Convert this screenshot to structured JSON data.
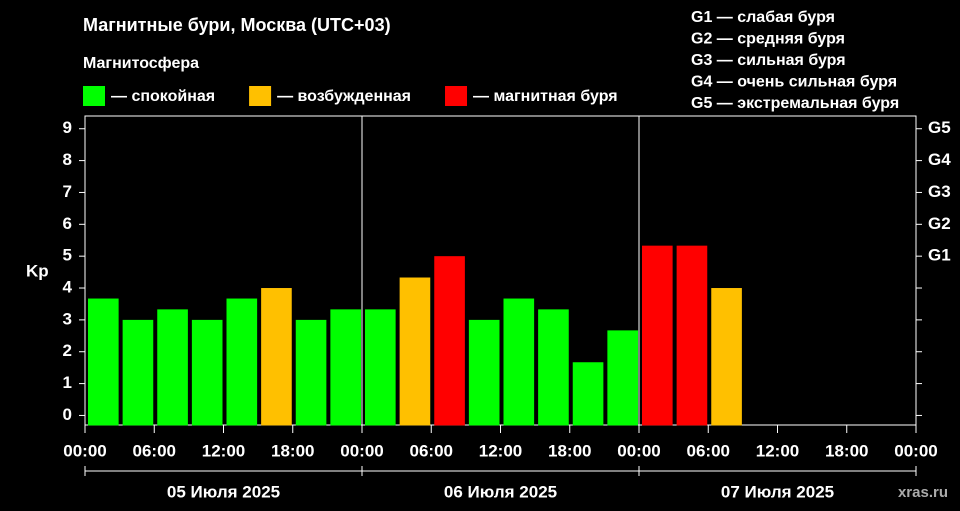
{
  "chart_data": {
    "type": "bar",
    "title": "Магнитные бури, Москва (UTC+03)",
    "subtitle": "Магнитосфера",
    "legend": [
      {
        "label": "— спокойная",
        "color": "#00ff00"
      },
      {
        "label": "— возбужденная",
        "color": "#ffc000"
      },
      {
        "label": "— магнитная буря",
        "color": "#ff0000"
      }
    ],
    "storm_levels": [
      "G1 — слабая буря",
      "G2 — средняя буря",
      "G3 — сильная буря",
      "G4 — очень сильная буря",
      "G5 — экстремальная буря"
    ],
    "ylabel": "Kp",
    "x": [
      0,
      3,
      6,
      9,
      12,
      15,
      18,
      21,
      24,
      27,
      30,
      33,
      36,
      39,
      42,
      45,
      48,
      51,
      54
    ],
    "values": [
      3.67,
      3,
      3.33,
      3,
      3.67,
      4,
      3,
      3.33,
      3.33,
      4.33,
      5,
      3,
      3.67,
      3.33,
      1.67,
      2.67,
      5.33,
      5.33,
      4
    ],
    "colors": [
      "#00ff00",
      "#00ff00",
      "#00ff00",
      "#00ff00",
      "#00ff00",
      "#ffc000",
      "#00ff00",
      "#00ff00",
      "#00ff00",
      "#ffc000",
      "#ff0000",
      "#00ff00",
      "#00ff00",
      "#00ff00",
      "#00ff00",
      "#00ff00",
      "#ff0000",
      "#ff0000",
      "#ffc000"
    ],
    "bar_hours": 3,
    "xlim": [
      0,
      72
    ],
    "xticks": [
      {
        "value": 0,
        "label": "00:00"
      },
      {
        "value": 6,
        "label": "06:00"
      },
      {
        "value": 12,
        "label": "12:00"
      },
      {
        "value": 18,
        "label": "18:00"
      },
      {
        "value": 24,
        "label": "00:00"
      },
      {
        "value": 30,
        "label": "06:00"
      },
      {
        "value": 36,
        "label": "12:00"
      },
      {
        "value": 42,
        "label": "18:00"
      },
      {
        "value": 48,
        "label": "00:00"
      },
      {
        "value": 54,
        "label": "06:00"
      },
      {
        "value": 60,
        "label": "12:00"
      },
      {
        "value": 66,
        "label": "18:00"
      },
      {
        "value": 72,
        "label": "00:00"
      }
    ],
    "days": [
      "05 Июля 2025",
      "06 Июля 2025",
      "07 Июля 2025"
    ],
    "ylim": [
      -0.3,
      9.4
    ],
    "yticks": [
      0,
      1,
      2,
      3,
      4,
      5,
      6,
      7,
      8,
      9
    ],
    "y2ticks": [
      {
        "value": 5,
        "label": "G1"
      },
      {
        "value": 6,
        "label": "G2"
      },
      {
        "value": 7,
        "label": "G3"
      },
      {
        "value": 8,
        "label": "G4"
      },
      {
        "value": 9,
        "label": "G5"
      }
    ],
    "watermark": "xras.ru"
  }
}
